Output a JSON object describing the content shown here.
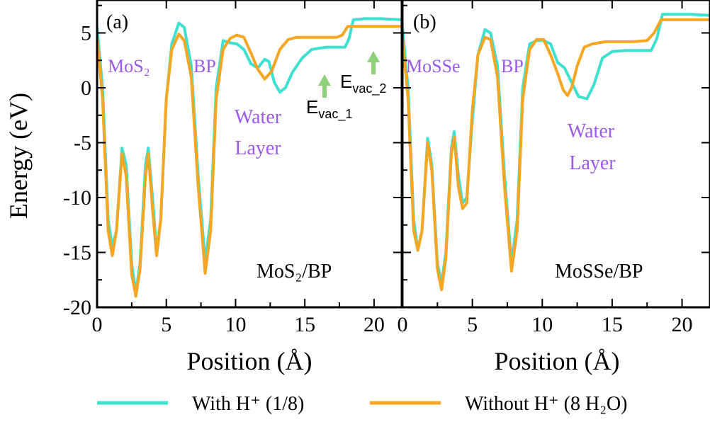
{
  "figure": {
    "ylabel": "Energy (eV)",
    "xlabel": "Position (Å)",
    "legend": [
      {
        "label": "With H⁺ (1/8)",
        "color": "#40e0d0"
      },
      {
        "label": "Without H⁺ (8 H₂O)",
        "color": "#f5a623"
      }
    ],
    "label_color": "#9b59f0",
    "arrow_color": "#8fd17a"
  },
  "chart_data": [
    {
      "type": "line",
      "panel": "(a)",
      "title": "MoS₂/BP",
      "xlim": [
        0,
        22
      ],
      "ylim": [
        -20,
        8
      ],
      "xticks": [
        0,
        5,
        10,
        15,
        20
      ],
      "yticks": [
        5,
        0,
        -5,
        -10,
        -15,
        -20
      ],
      "labels": {
        "mos2": "MoS₂",
        "bp": "BP",
        "water1": "Water",
        "water2": "Layer",
        "evac1": "E",
        "evac1_sub": "vac_1",
        "evac2": "E",
        "evac2_sub": "vac_2"
      },
      "series": [
        {
          "name": "With H⁺ (1/8)",
          "color": "#40e0d0",
          "points": [
            [
              0,
              5.5
            ],
            [
              0.4,
              0
            ],
            [
              0.8,
              -12
            ],
            [
              1.1,
              -14.5
            ],
            [
              1.4,
              -13
            ],
            [
              1.8,
              -5.5
            ],
            [
              2.1,
              -7
            ],
            [
              2.5,
              -16
            ],
            [
              2.8,
              -18.7
            ],
            [
              3.1,
              -16
            ],
            [
              3.5,
              -7
            ],
            [
              3.7,
              -5.5
            ],
            [
              4,
              -10
            ],
            [
              4.3,
              -15
            ],
            [
              4.6,
              -12
            ],
            [
              5,
              -1
            ],
            [
              5.4,
              4
            ],
            [
              5.9,
              5.9
            ],
            [
              6.3,
              5.5
            ],
            [
              6.8,
              2
            ],
            [
              7.3,
              -8
            ],
            [
              7.8,
              -15.8
            ],
            [
              8.2,
              -12
            ],
            [
              8.6,
              0
            ],
            [
              9.1,
              4.3
            ],
            [
              9.6,
              4.1
            ],
            [
              10.1,
              4
            ],
            [
              10.6,
              3.5
            ],
            [
              11.1,
              2.2
            ],
            [
              11.6,
              1.8
            ],
            [
              12.1,
              2.6
            ],
            [
              12.4,
              2.4
            ],
            [
              12.8,
              0.5
            ],
            [
              13.2,
              -0.4
            ],
            [
              13.6,
              0
            ],
            [
              14.1,
              1.4
            ],
            [
              14.8,
              2.7
            ],
            [
              15.5,
              3.5
            ],
            [
              16,
              3.6
            ],
            [
              16.6,
              3.7
            ],
            [
              17.3,
              3.7
            ],
            [
              17.9,
              3.7
            ],
            [
              18.2,
              4.5
            ],
            [
              18.5,
              6.2
            ],
            [
              19.3,
              6.3
            ],
            [
              20.5,
              6.3
            ],
            [
              22,
              6.2
            ]
          ]
        },
        {
          "name": "Without H⁺ (8 H₂O)",
          "color": "#f5a623",
          "points": [
            [
              0,
              4.5
            ],
            [
              0.4,
              -1
            ],
            [
              0.8,
              -13
            ],
            [
              1.1,
              -15.3
            ],
            [
              1.4,
              -13
            ],
            [
              1.8,
              -6
            ],
            [
              2.1,
              -8
            ],
            [
              2.5,
              -17
            ],
            [
              2.8,
              -19
            ],
            [
              3.1,
              -16.5
            ],
            [
              3.5,
              -8
            ],
            [
              3.7,
              -6
            ],
            [
              4,
              -11
            ],
            [
              4.3,
              -15.3
            ],
            [
              4.6,
              -12
            ],
            [
              5,
              -1
            ],
            [
              5.4,
              3.5
            ],
            [
              5.9,
              4.9
            ],
            [
              6.3,
              4.3
            ],
            [
              6.8,
              1
            ],
            [
              7.3,
              -9
            ],
            [
              7.8,
              -16.9
            ],
            [
              8.2,
              -13
            ],
            [
              8.6,
              -1
            ],
            [
              9.1,
              3.5
            ],
            [
              9.6,
              4.5
            ],
            [
              10.1,
              4.8
            ],
            [
              10.6,
              4.6
            ],
            [
              11.1,
              3.2
            ],
            [
              11.6,
              1.7
            ],
            [
              12.1,
              0.8
            ],
            [
              12.6,
              1.5
            ],
            [
              13.2,
              3.5
            ],
            [
              13.8,
              4.4
            ],
            [
              14.4,
              4.6
            ],
            [
              15.4,
              4.6
            ],
            [
              16.4,
              4.6
            ],
            [
              17.3,
              4.6
            ],
            [
              17.7,
              4.8
            ],
            [
              18.1,
              5.6
            ],
            [
              19,
              5.6
            ],
            [
              20.5,
              5.6
            ],
            [
              22,
              5.6
            ]
          ]
        }
      ]
    },
    {
      "type": "line",
      "panel": "(b)",
      "title": "MoSSe/BP",
      "xlim": [
        0,
        22
      ],
      "ylim": [
        -20,
        8
      ],
      "xticks": [
        0,
        5,
        10,
        15,
        20
      ],
      "yticks": [
        5,
        0,
        -5,
        -10,
        -15,
        -20
      ],
      "labels": {
        "mosse": "MoSSe",
        "bp": "BP",
        "water1": "Water",
        "water2": "Layer"
      },
      "series": [
        {
          "name": "With H⁺ (1/8)",
          "color": "#40e0d0",
          "points": [
            [
              0,
              5.5
            ],
            [
              0.4,
              0
            ],
            [
              0.8,
              -12
            ],
            [
              1.1,
              -14.8
            ],
            [
              1.4,
              -13
            ],
            [
              1.8,
              -4.6
            ],
            [
              2.1,
              -7
            ],
            [
              2.5,
              -16
            ],
            [
              2.8,
              -17.8
            ],
            [
              3.1,
              -15
            ],
            [
              3.5,
              -5.5
            ],
            [
              3.7,
              -4
            ],
            [
              4,
              -8
            ],
            [
              4.3,
              -10.5
            ],
            [
              4.6,
              -10
            ],
            [
              5,
              -3
            ],
            [
              5.4,
              3
            ],
            [
              5.9,
              5.3
            ],
            [
              6.3,
              5
            ],
            [
              6.8,
              2
            ],
            [
              7.3,
              -8
            ],
            [
              7.8,
              -16
            ],
            [
              8.2,
              -12
            ],
            [
              8.6,
              0
            ],
            [
              9.1,
              4
            ],
            [
              9.6,
              4.3
            ],
            [
              10.1,
              4.3
            ],
            [
              10.6,
              4
            ],
            [
              11.1,
              2.3
            ],
            [
              11.6,
              1.8
            ],
            [
              12.1,
              0.5
            ],
            [
              12.6,
              -0.8
            ],
            [
              13.2,
              -1
            ],
            [
              13.7,
              0.3
            ],
            [
              14.3,
              2.7
            ],
            [
              15,
              3.3
            ],
            [
              16,
              3.4
            ],
            [
              17,
              3.4
            ],
            [
              17.8,
              3.4
            ],
            [
              18.2,
              4.5
            ],
            [
              18.6,
              6.7
            ],
            [
              19.5,
              6.7
            ],
            [
              20.7,
              6.7
            ],
            [
              22,
              6.6
            ]
          ]
        },
        {
          "name": "Without H⁺ (8 H₂O)",
          "color": "#f5a623",
          "points": [
            [
              0,
              4.5
            ],
            [
              0.4,
              -1
            ],
            [
              0.8,
              -13
            ],
            [
              1.1,
              -14.8
            ],
            [
              1.4,
              -13
            ],
            [
              1.8,
              -5
            ],
            [
              2.1,
              -7.5
            ],
            [
              2.5,
              -16.5
            ],
            [
              2.8,
              -18.4
            ],
            [
              3.1,
              -15.5
            ],
            [
              3.5,
              -6
            ],
            [
              3.7,
              -4.5
            ],
            [
              4,
              -9
            ],
            [
              4.3,
              -11
            ],
            [
              4.6,
              -10.5
            ],
            [
              5,
              -2
            ],
            [
              5.4,
              3
            ],
            [
              5.9,
              4.6
            ],
            [
              6.3,
              4.4
            ],
            [
              6.8,
              1
            ],
            [
              7.3,
              -9
            ],
            [
              7.8,
              -16.7
            ],
            [
              8.2,
              -13
            ],
            [
              8.6,
              -1
            ],
            [
              9.1,
              3.5
            ],
            [
              9.6,
              4.4
            ],
            [
              10.1,
              4.4
            ],
            [
              10.6,
              3
            ],
            [
              11.1,
              1.3
            ],
            [
              11.5,
              -0.2
            ],
            [
              11.8,
              -0.7
            ],
            [
              12.1,
              0
            ],
            [
              12.5,
              2
            ],
            [
              13,
              3.7
            ],
            [
              13.6,
              4
            ],
            [
              14.5,
              4.2
            ],
            [
              15.5,
              4.2
            ],
            [
              16.5,
              4.2
            ],
            [
              17.5,
              4.3
            ],
            [
              18,
              5
            ],
            [
              18.5,
              6.2
            ],
            [
              19.5,
              6.2
            ],
            [
              20.7,
              6.2
            ],
            [
              22,
              6.2
            ]
          ]
        }
      ]
    }
  ]
}
